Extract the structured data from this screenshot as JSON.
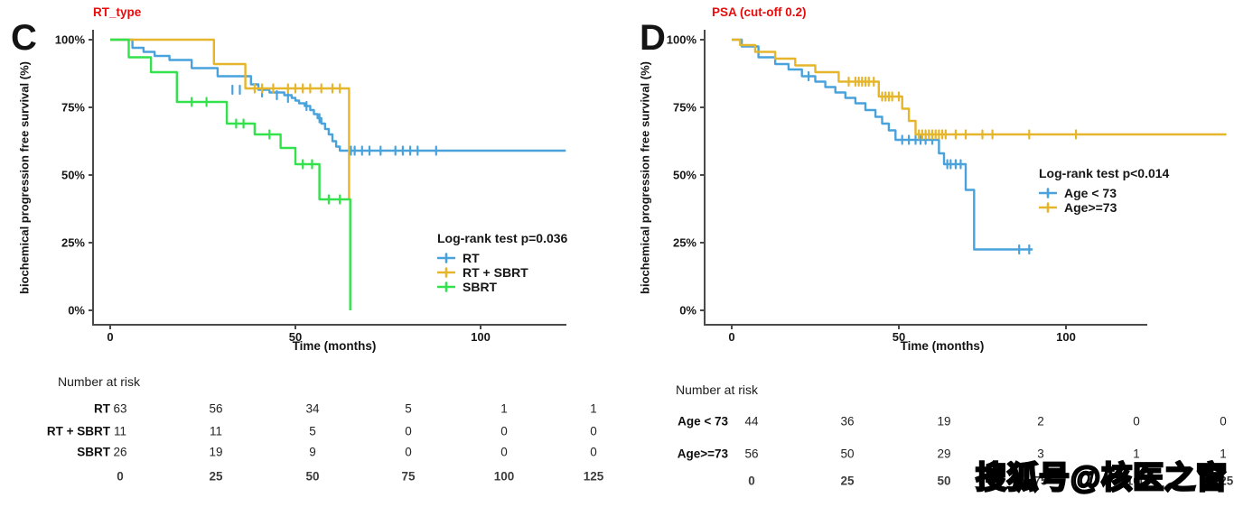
{
  "title_color": "#E60C0C",
  "watermark": "搜狐号@核医之窗",
  "panels": [
    {
      "letter": "C",
      "plot_title": "RT_type",
      "ylabel": "biochemical progression free survival (%)",
      "xlabel": "Time (months)",
      "ytick_labels": [
        "100%",
        "75%",
        "50%",
        "25%",
        "0%"
      ],
      "xtick_labels": [
        "0",
        "50",
        "100"
      ],
      "legend": {
        "title": "Log-rank test p=0.036",
        "items": [
          {
            "label": "RT",
            "color": "#49A2DC"
          },
          {
            "label": "RT + SBRT",
            "color": "#E5B52B"
          },
          {
            "label": "SBRT",
            "color": "#32E14B"
          }
        ]
      },
      "risk_table": {
        "title": "Number at risk",
        "rows": [
          {
            "label": "RT",
            "values": [
              "63",
              "56",
              "34",
              "5",
              "1",
              "1"
            ]
          },
          {
            "label": "RT + SBRT",
            "values": [
              "11",
              "11",
              "5",
              "0",
              "0",
              "0"
            ]
          },
          {
            "label": "SBRT",
            "values": [
              "26",
              "19",
              "9",
              "0",
              "0",
              "0"
            ]
          }
        ],
        "time_values": [
          "0",
          "25",
          "50",
          "75",
          "100",
          "125"
        ]
      }
    },
    {
      "letter": "D",
      "plot_title": "PSA (cut-off 0.2)",
      "ylabel": "biochemical progression free survival (%)",
      "xlabel": "Time (months)",
      "ytick_labels": [
        "100%",
        "75%",
        "50%",
        "25%",
        "0%"
      ],
      "xtick_labels": [
        "0",
        "50",
        "100"
      ],
      "legend": {
        "title": "Log-rank test p<0.014",
        "items": [
          {
            "label": "Age < 73",
            "color": "#49A2DC"
          },
          {
            "label": "Age>=73",
            "color": "#E5B52B"
          }
        ]
      },
      "risk_table": {
        "title": "Number at risk",
        "rows": [
          {
            "label": "Age < 73",
            "values": [
              "44",
              "36",
              "19",
              "2",
              "0",
              "0"
            ]
          },
          {
            "label": "Age>=73",
            "values": [
              "56",
              "50",
              "29",
              "3",
              "1",
              "1"
            ]
          }
        ],
        "time_values": [
          "0",
          "25",
          "50",
          "75",
          "100",
          "125"
        ]
      }
    }
  ],
  "chart_data": [
    {
      "type": "line",
      "subtype": "kaplan-meier-step",
      "title": "RT_type",
      "xlabel": "Time (months)",
      "ylabel": "biochemical progression free survival (%)",
      "xlim": [
        0,
        125
      ],
      "ylim": [
        0,
        100
      ],
      "xticks": [
        0,
        50,
        100
      ],
      "yticks": [
        100,
        75,
        50,
        25,
        0
      ],
      "grid": false,
      "legend_position": "inside right",
      "legend_title": "Log-rank test p=0.036",
      "series": [
        {
          "name": "RT",
          "color": "#49A2DC",
          "points": [
            [
              0,
              100
            ],
            [
              6,
              97
            ],
            [
              9,
              95.5
            ],
            [
              12,
              94
            ],
            [
              16,
              92.5
            ],
            [
              22,
              89.5
            ],
            [
              29,
              86.5
            ],
            [
              38,
              83.5
            ],
            [
              40,
              81.5
            ],
            [
              43,
              80.5
            ],
            [
              47,
              79.5
            ],
            [
              49,
              78.5
            ],
            [
              50,
              77.5
            ],
            [
              51,
              76.5
            ],
            [
              52.5,
              75.5
            ],
            [
              54,
              74
            ],
            [
              55,
              72.5
            ],
            [
              56,
              71
            ],
            [
              57,
              69
            ],
            [
              58,
              67
            ],
            [
              59,
              65
            ],
            [
              60,
              62.5
            ],
            [
              61,
              60.5
            ],
            [
              62,
              59
            ],
            [
              123,
              59
            ]
          ],
          "censors": [
            [
              33,
              81.5
            ],
            [
              35,
              81.5
            ],
            [
              41,
              80.5
            ],
            [
              45,
              79.5
            ],
            [
              48,
              78.5
            ],
            [
              53,
              75.5
            ],
            [
              56.5,
              71
            ],
            [
              65,
              59
            ],
            [
              66,
              59
            ],
            [
              68,
              59
            ],
            [
              70,
              59
            ],
            [
              73,
              59
            ],
            [
              77,
              59
            ],
            [
              79,
              59
            ],
            [
              81,
              59
            ],
            [
              83,
              59
            ],
            [
              88,
              59
            ]
          ]
        },
        {
          "name": "RT + SBRT",
          "color": "#E5B52B",
          "points": [
            [
              0,
              100
            ],
            [
              28,
              91
            ],
            [
              36.5,
              82
            ],
            [
              64.5,
              41
            ]
          ],
          "censors": [
            [
              39,
              82
            ],
            [
              41,
              82
            ],
            [
              44,
              82
            ],
            [
              48,
              82
            ],
            [
              50,
              82
            ],
            [
              52,
              82
            ],
            [
              54,
              82
            ],
            [
              57,
              82
            ],
            [
              60,
              82
            ],
            [
              62,
              82
            ]
          ]
        },
        {
          "name": "SBRT",
          "color": "#32E14B",
          "points": [
            [
              0,
              100
            ],
            [
              5,
              93.5
            ],
            [
              11,
              88
            ],
            [
              18,
              77
            ],
            [
              31.5,
              69
            ],
            [
              39,
              65
            ],
            [
              46,
              60
            ],
            [
              50,
              54
            ],
            [
              56.5,
              41
            ],
            [
              64.8,
              0
            ]
          ],
          "censors": [
            [
              22,
              77
            ],
            [
              26,
              77
            ],
            [
              34,
              69
            ],
            [
              36,
              69
            ],
            [
              43,
              65
            ],
            [
              52,
              54
            ],
            [
              54.5,
              54
            ],
            [
              59,
              41
            ],
            [
              62,
              41
            ]
          ]
        }
      ]
    },
    {
      "type": "line",
      "subtype": "kaplan-meier-step",
      "title": "PSA (cut-off 0.2)",
      "xlabel": "Time (months)",
      "ylabel": "biochemical progression free survival (%)",
      "xlim": [
        0,
        125
      ],
      "ylim": [
        0,
        100
      ],
      "xticks": [
        0,
        50,
        100
      ],
      "yticks": [
        100,
        75,
        50,
        25,
        0
      ],
      "grid": false,
      "legend_position": "inside right",
      "legend_title": "Log-rank test p<0.014",
      "series": [
        {
          "name": "Age < 73",
          "color": "#49A2DC",
          "points": [
            [
              0,
              100
            ],
            [
              3,
              97.5
            ],
            [
              8,
              93.5
            ],
            [
              13,
              91
            ],
            [
              17,
              89
            ],
            [
              21,
              86.5
            ],
            [
              25,
              84.5
            ],
            [
              28,
              82.5
            ],
            [
              31,
              80.5
            ],
            [
              34,
              78.5
            ],
            [
              37,
              76.5
            ],
            [
              40,
              74
            ],
            [
              43,
              71.5
            ],
            [
              45,
              69
            ],
            [
              47,
              66.5
            ],
            [
              49,
              63
            ],
            [
              62,
              58
            ],
            [
              63.5,
              54
            ],
            [
              70,
              44.5
            ],
            [
              72.5,
              22.5
            ],
            [
              90,
              22.5
            ]
          ],
          "censors": [
            [
              23,
              86.5
            ],
            [
              51,
              63
            ],
            [
              53,
              63
            ],
            [
              55,
              63
            ],
            [
              56.5,
              63
            ],
            [
              58,
              63
            ],
            [
              60,
              63
            ],
            [
              64.5,
              54
            ],
            [
              65.5,
              54
            ],
            [
              67,
              54
            ],
            [
              68.5,
              54
            ],
            [
              86,
              22.5
            ],
            [
              89,
              22.5
            ]
          ]
        },
        {
          "name": "Age>=73",
          "color": "#E5B52B",
          "points": [
            [
              0,
              100
            ],
            [
              2.5,
              98
            ],
            [
              7,
              95.5
            ],
            [
              13,
              93
            ],
            [
              19,
              90.5
            ],
            [
              25,
              88
            ],
            [
              32,
              84.5
            ],
            [
              44,
              79
            ],
            [
              51,
              74.5
            ],
            [
              53,
              70
            ],
            [
              55,
              65
            ],
            [
              148,
              65
            ]
          ],
          "censors": [
            [
              35,
              84.5
            ],
            [
              37,
              84.5
            ],
            [
              38,
              84.5
            ],
            [
              39,
              84.5
            ],
            [
              40,
              84.5
            ],
            [
              41,
              84.5
            ],
            [
              42.5,
              84.5
            ],
            [
              45,
              79
            ],
            [
              46,
              79
            ],
            [
              47,
              79
            ],
            [
              48,
              79
            ],
            [
              50,
              79
            ],
            [
              56,
              65
            ],
            [
              57,
              65
            ],
            [
              58,
              65
            ],
            [
              59,
              65
            ],
            [
              60,
              65
            ],
            [
              61,
              65
            ],
            [
              62,
              65
            ],
            [
              63,
              65
            ],
            [
              64,
              65
            ],
            [
              67,
              65
            ],
            [
              70,
              65
            ],
            [
              75,
              65
            ],
            [
              78,
              65
            ],
            [
              89,
              65
            ],
            [
              103,
              65
            ]
          ]
        }
      ]
    }
  ]
}
